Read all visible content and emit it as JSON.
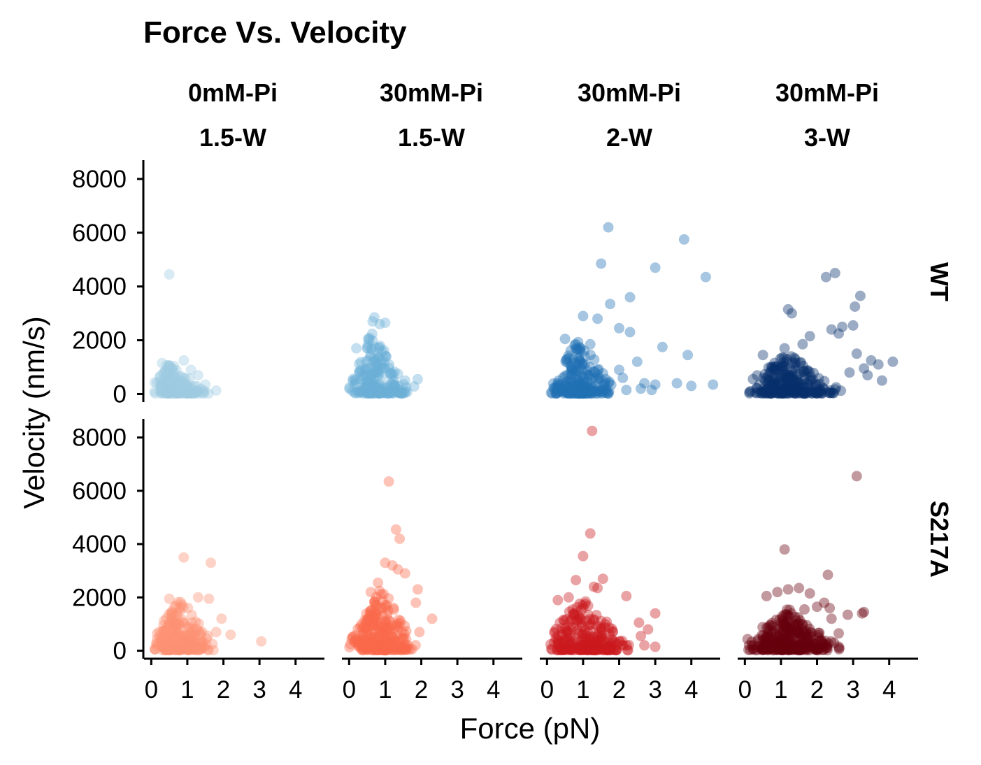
{
  "chart_data": {
    "type": "scatter",
    "title": "Force Vs. Velocity",
    "xlabel": "Force (pN)",
    "ylabel": "Velocity (nm/s)",
    "xlim": [
      -0.2,
      4.8
    ],
    "ylim": [
      -300,
      8700
    ],
    "x_ticks": [
      "0",
      "1",
      "2",
      "3",
      "4"
    ],
    "y_ticks": [
      "0",
      "2000",
      "4000",
      "6000",
      "8000"
    ],
    "grid": false,
    "legend": "none",
    "columns": [
      {
        "line1": "0mM-Pi",
        "line2": "1.5-W"
      },
      {
        "line1": "30mM-Pi",
        "line2": "1.5-W"
      },
      {
        "line1": "30mM-Pi",
        "line2": "2-W"
      },
      {
        "line1": "30mM-Pi",
        "line2": "3-W"
      }
    ],
    "rows": [
      "WT",
      "S217A"
    ],
    "series": [
      {
        "row": 0,
        "col": 0,
        "color": "#9ecae1",
        "cluster": {
          "n": 170,
          "xmin": 0.0,
          "xmax": 1.6,
          "xpeak": 0.55,
          "ymax": 1200
        },
        "points": [
          [
            0.5,
            4450
          ],
          [
            1.8,
            130
          ],
          [
            1.5,
            350
          ],
          [
            1.3,
            700
          ],
          [
            0.9,
            1250
          ],
          [
            0.3,
            1150
          ],
          [
            1.1,
            900
          ]
        ]
      },
      {
        "row": 0,
        "col": 1,
        "color": "#6baed6",
        "cluster": {
          "n": 200,
          "xmin": 0.0,
          "xmax": 1.7,
          "xpeak": 0.65,
          "ymax": 2300
        },
        "points": [
          [
            0.7,
            2850
          ],
          [
            0.85,
            2600
          ],
          [
            1.0,
            2650
          ],
          [
            0.65,
            2700
          ],
          [
            1.8,
            280
          ],
          [
            1.9,
            550
          ],
          [
            1.35,
            750
          ],
          [
            1.55,
            500
          ],
          [
            0.2,
            1700
          ]
        ]
      },
      {
        "row": 0,
        "col": 2,
        "color": "#2171b5",
        "cluster": {
          "n": 220,
          "xmin": 0.0,
          "xmax": 1.9,
          "xpeak": 0.9,
          "ymax": 2100
        },
        "points": [
          [
            1.7,
            6200
          ],
          [
            3.8,
            5750
          ],
          [
            1.5,
            4850
          ],
          [
            3.0,
            4700
          ],
          [
            4.4,
            4350
          ],
          [
            2.3,
            3600
          ],
          [
            1.75,
            3350
          ],
          [
            1.0,
            2900
          ],
          [
            1.4,
            2800
          ],
          [
            2.0,
            2450
          ],
          [
            2.3,
            2300
          ],
          [
            3.2,
            1750
          ],
          [
            2.5,
            1200
          ],
          [
            2.0,
            900
          ],
          [
            3.9,
            1450
          ],
          [
            2.1,
            600
          ],
          [
            2.7,
            400
          ],
          [
            3.0,
            350
          ],
          [
            3.6,
            400
          ],
          [
            4.0,
            300
          ],
          [
            4.6,
            350
          ],
          [
            2.6,
            200
          ],
          [
            2.9,
            150
          ],
          [
            2.2,
            150
          ],
          [
            0.8,
            1700
          ],
          [
            1.2,
            1850
          ],
          [
            0.5,
            2050
          ]
        ]
      },
      {
        "row": 0,
        "col": 3,
        "color": "#08306b",
        "cluster": {
          "n": 260,
          "xmin": 0.0,
          "xmax": 2.7,
          "xpeak": 1.2,
          "ymax": 1500
        },
        "points": [
          [
            2.5,
            4500
          ],
          [
            2.25,
            4350
          ],
          [
            3.2,
            3650
          ],
          [
            1.2,
            3150
          ],
          [
            1.3,
            3000
          ],
          [
            3.05,
            3250
          ],
          [
            2.7,
            2500
          ],
          [
            3.0,
            2550
          ],
          [
            2.4,
            2400
          ],
          [
            1.8,
            2150
          ],
          [
            2.6,
            2250
          ],
          [
            3.5,
            1250
          ],
          [
            4.1,
            1200
          ],
          [
            3.7,
            1100
          ],
          [
            3.4,
            700
          ],
          [
            3.8,
            500
          ],
          [
            2.9,
            800
          ],
          [
            3.1,
            1500
          ],
          [
            3.3,
            950
          ],
          [
            0.5,
            1450
          ],
          [
            1.1,
            1700
          ],
          [
            1.6,
            1850
          ]
        ]
      },
      {
        "row": 1,
        "col": 0,
        "color": "#fc9272",
        "cluster": {
          "n": 230,
          "xmin": 0.0,
          "xmax": 1.8,
          "xpeak": 0.8,
          "ymax": 2050
        },
        "points": [
          [
            0.9,
            3500
          ],
          [
            1.65,
            3300
          ],
          [
            3.05,
            350
          ],
          [
            2.2,
            600
          ],
          [
            1.95,
            1200
          ],
          [
            1.8,
            700
          ],
          [
            1.6,
            1950
          ],
          [
            0.5,
            1950
          ],
          [
            1.3,
            2000
          ]
        ]
      },
      {
        "row": 1,
        "col": 1,
        "color": "#fb6a4a",
        "cluster": {
          "n": 260,
          "xmin": 0.0,
          "xmax": 1.9,
          "xpeak": 0.9,
          "ymax": 2400
        },
        "points": [
          [
            1.1,
            6350
          ],
          [
            1.3,
            4550
          ],
          [
            1.4,
            4200
          ],
          [
            1.2,
            3200
          ],
          [
            1.35,
            3050
          ],
          [
            1.0,
            3300
          ],
          [
            1.55,
            2900
          ],
          [
            1.9,
            2300
          ],
          [
            2.3,
            1200
          ],
          [
            1.95,
            700
          ],
          [
            1.85,
            1800
          ],
          [
            0.8,
            2550
          ],
          [
            0.6,
            2200
          ]
        ]
      },
      {
        "row": 1,
        "col": 2,
        "color": "#cb181d",
        "cluster": {
          "n": 260,
          "xmin": 0.0,
          "xmax": 2.4,
          "xpeak": 1.0,
          "ymax": 2000
        },
        "points": [
          [
            1.25,
            8250
          ],
          [
            1.2,
            4400
          ],
          [
            1.0,
            3550
          ],
          [
            0.8,
            2650
          ],
          [
            1.3,
            2400
          ],
          [
            1.4,
            2350
          ],
          [
            1.55,
            2700
          ],
          [
            2.2,
            2050
          ],
          [
            2.55,
            1050
          ],
          [
            2.8,
            800
          ],
          [
            2.6,
            550
          ],
          [
            3.0,
            1400
          ],
          [
            3.0,
            150
          ],
          [
            2.7,
            200
          ],
          [
            0.3,
            1900
          ],
          [
            0.6,
            2000
          ]
        ]
      },
      {
        "row": 1,
        "col": 3,
        "color": "#67000d",
        "cluster": {
          "n": 300,
          "xmin": 0.0,
          "xmax": 2.7,
          "xpeak": 1.2,
          "ymax": 1600
        },
        "points": [
          [
            3.1,
            6550
          ],
          [
            1.1,
            3800
          ],
          [
            2.3,
            2850
          ],
          [
            3.25,
            1400
          ],
          [
            3.3,
            1450
          ],
          [
            2.85,
            1350
          ],
          [
            2.35,
            1600
          ],
          [
            2.2,
            1800
          ],
          [
            1.5,
            2350
          ],
          [
            1.2,
            2300
          ],
          [
            0.9,
            2200
          ],
          [
            1.8,
            2150
          ],
          [
            0.6,
            2050
          ],
          [
            2.0,
            1650
          ],
          [
            1.65,
            1550
          ],
          [
            2.6,
            650
          ],
          [
            2.4,
            1200
          ]
        ]
      }
    ]
  }
}
